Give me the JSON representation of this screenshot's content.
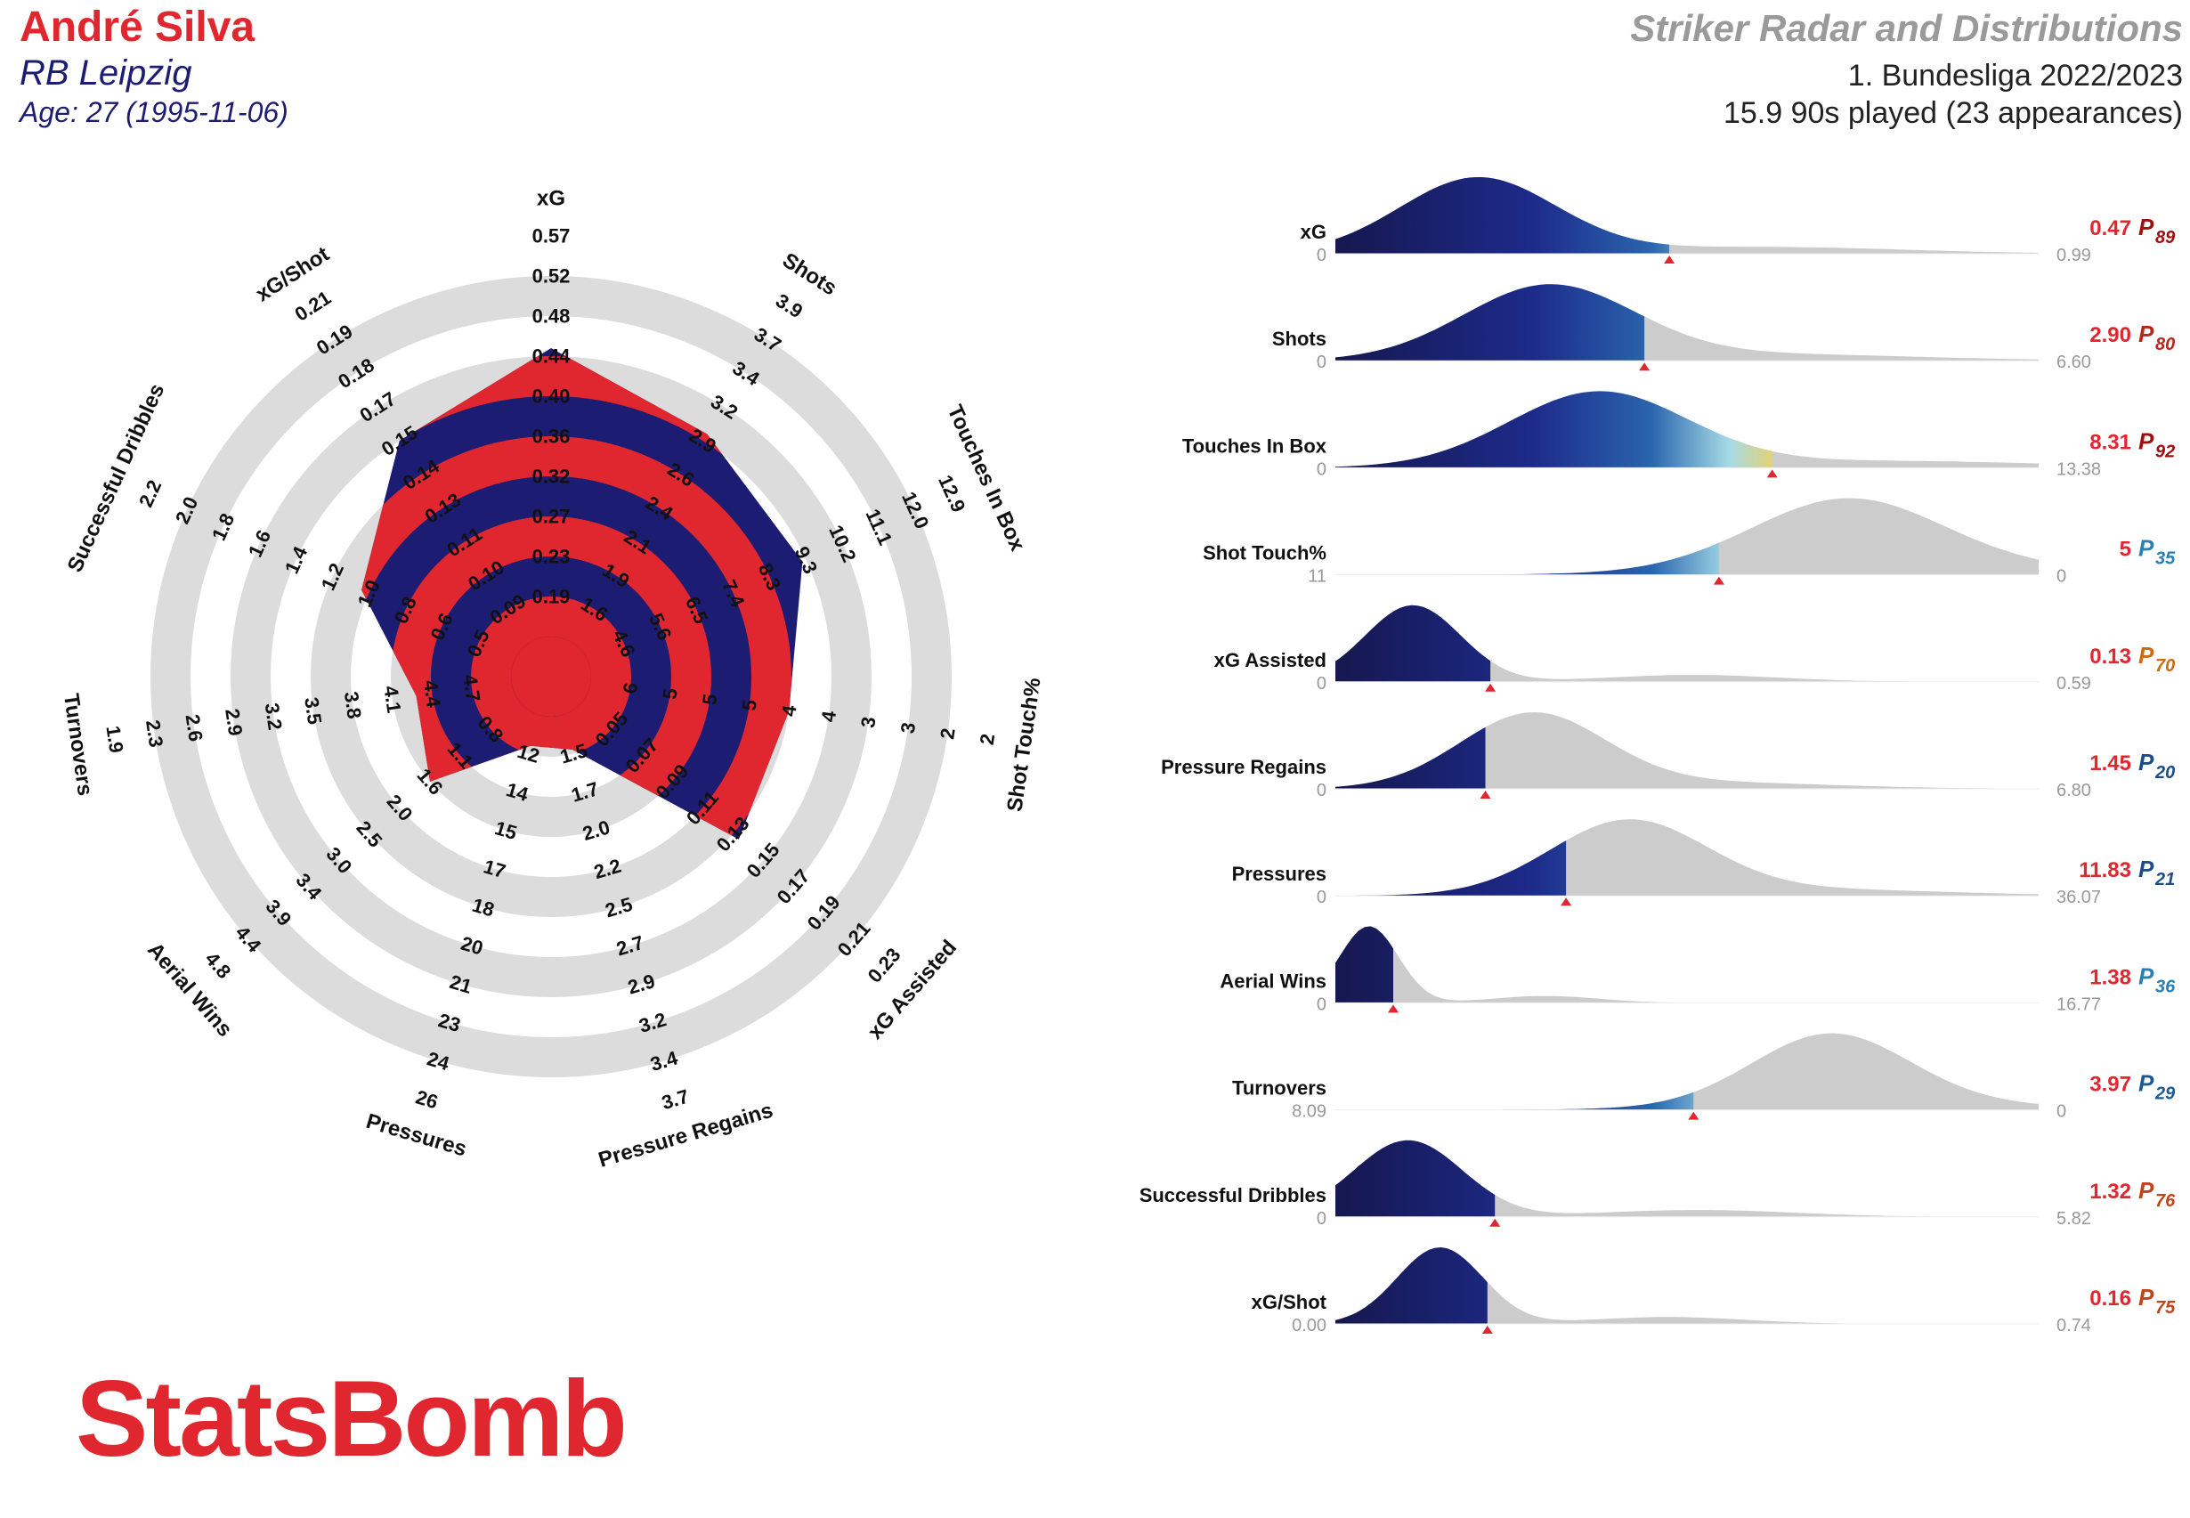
{
  "header": {
    "player": "André Silva",
    "team": "RB Leipzig",
    "age": "Age: 27 (1995-11-06)",
    "chart_title": "Striker Radar and Distributions",
    "competition": "1. Bundesliga 2022/2023",
    "minutes": "15.9 90s played (23 appearances)"
  },
  "logo": {
    "text": "StatsBomb"
  },
  "colors": {
    "player_red": "#e0262f",
    "team_navy": "#1c1d72",
    "title_grey": "#9a9a9a",
    "ring_grey": "#dcdcdc",
    "dist_grey": "#cccccc"
  },
  "chart_data": [
    {
      "type": "radar",
      "axes": [
        {
          "label": "xG",
          "ticks": [
            "0.19",
            "0.23",
            "0.27",
            "0.32",
            "0.36",
            "0.40",
            "0.44",
            "0.48",
            "0.52",
            "0.57"
          ],
          "value_fraction": 0.72
        },
        {
          "label": "Shots",
          "ticks": [
            "1.6",
            "1.9",
            "2.1",
            "2.4",
            "2.6",
            "2.9",
            "3.2",
            "3.4",
            "3.7",
            "3.9"
          ],
          "value_fraction": 0.62
        },
        {
          "label": "Touches In Box",
          "ticks": [
            "4.6",
            "5.6",
            "6.5",
            "7.4",
            "8.3",
            "9.3",
            "10.2",
            "11.1",
            "12.0",
            "12.9"
          ],
          "value_fraction": 0.59
        },
        {
          "label": "Shot Touch%",
          "ticks": [
            "6",
            "5",
            "5",
            "5",
            "4",
            "4",
            "3",
            "3",
            "2",
            "2"
          ],
          "value_fraction": 0.5
        },
        {
          "label": "xG Assisted",
          "ticks": [
            "0.05",
            "0.07",
            "0.09",
            "0.11",
            "0.13",
            "0.15",
            "0.17",
            "0.19",
            "0.21",
            "0.23"
          ],
          "value_fraction": 0.52
        },
        {
          "label": "Pressure Regains",
          "ticks": [
            "1.5",
            "1.7",
            "2.0",
            "2.2",
            "2.5",
            "2.7",
            "2.9",
            "3.2",
            "3.4",
            "3.7"
          ],
          "value_fraction": 0.09
        },
        {
          "label": "Pressures",
          "ticks": [
            "12",
            "14",
            "15",
            "17",
            "18",
            "20",
            "21",
            "23",
            "24",
            "26"
          ],
          "value_fraction": 0.08
        },
        {
          "label": "Aerial Wins",
          "ticks": [
            "0.8",
            "1.1",
            "1.6",
            "2.0",
            "2.5",
            "3.0",
            "3.4",
            "3.9",
            "4.4",
            "4.8"
          ],
          "value_fraction": 0.3
        },
        {
          "label": "Turnovers",
          "ticks": [
            "4.7",
            "4.4",
            "4.1",
            "3.8",
            "3.5",
            "3.2",
            "2.9",
            "2.6",
            "2.3",
            "1.9"
          ],
          "value_fraction": 0.24
        },
        {
          "label": "Successful Dribbles",
          "ticks": [
            "0.5",
            "0.6",
            "0.8",
            "1.0",
            "1.2",
            "1.4",
            "1.6",
            "1.8",
            "2.0",
            "2.2"
          ],
          "value_fraction": 0.42
        },
        {
          "label": "xG/Shot",
          "ticks": [
            "0.09",
            "0.10",
            "0.11",
            "0.13",
            "0.14",
            "0.15",
            "0.17",
            "0.18",
            "0.19",
            "0.21"
          ],
          "value_fraction": 0.6
        }
      ]
    },
    {
      "type": "area",
      "series_type": "distribution",
      "rows": [
        {
          "label": "xG",
          "min": "0",
          "max": "0.99",
          "value": "0.47",
          "percentile": "89",
          "marker": 0.47,
          "x_min": 0,
          "x_max": 0.99,
          "pct_color": "#a01010",
          "peak": 0.2,
          "spread": 0.11,
          "tail": 0.6
        },
        {
          "label": "Shots",
          "min": "0",
          "max": "6.60",
          "value": "2.90",
          "percentile": "80",
          "marker": 2.9,
          "x_min": 0,
          "x_max": 6.6,
          "pct_color": "#b8281a",
          "peak": 2.0,
          "spread": 0.8,
          "tail": 4.0
        },
        {
          "label": "Touches In Box",
          "min": "0",
          "max": "13.38",
          "value": "8.31",
          "percentile": "92",
          "marker": 8.31,
          "x_min": 0,
          "x_max": 13.38,
          "pct_color": "#a01010",
          "peak": 5.0,
          "spread": 1.7,
          "tail": 10.5
        },
        {
          "label": "Shot Touch%",
          "min": "11",
          "max": "0",
          "value": "5",
          "percentile": "35",
          "marker": 5,
          "x_min": 11,
          "x_max": 0,
          "pct_color": "#2a7fb3",
          "peak": 3.0,
          "spread": 1.5,
          "tail": 1.5
        },
        {
          "label": "xG Assisted",
          "min": "0",
          "max": "0.59",
          "value": "0.13",
          "percentile": "70",
          "marker": 0.13,
          "x_min": 0,
          "x_max": 0.59,
          "pct_color": "#d06a10",
          "peak": 0.065,
          "spread": 0.04,
          "tail": 0.3
        },
        {
          "label": "Pressure Regains",
          "min": "0",
          "max": "6.80",
          "value": "1.45",
          "percentile": "20",
          "marker": 1.45,
          "x_min": 0,
          "x_max": 6.8,
          "pct_color": "#1c4c8a",
          "peak": 1.9,
          "spread": 0.7,
          "tail": 3.5
        },
        {
          "label": "Pressures",
          "min": "0",
          "max": "36.07",
          "value": "11.83",
          "percentile": "21",
          "marker": 11.83,
          "x_min": 0,
          "x_max": 36.07,
          "pct_color": "#1c4c8a",
          "peak": 15.0,
          "spread": 4.0,
          "tail": 24.0
        },
        {
          "label": "Aerial Wins",
          "min": "0",
          "max": "16.77",
          "value": "1.38",
          "percentile": "36",
          "marker": 1.38,
          "x_min": 0,
          "x_max": 16.77,
          "pct_color": "#2a7fb3",
          "peak": 0.8,
          "spread": 0.7,
          "tail": 5.0
        },
        {
          "label": "Turnovers",
          "min": "8.09",
          "max": "0",
          "value": "3.97",
          "percentile": "29",
          "marker": 3.97,
          "x_min": 8.09,
          "x_max": 0,
          "pct_color": "#1c5a90",
          "peak": 2.4,
          "spread": 0.9,
          "tail": 1.6
        },
        {
          "label": "Successful Dribbles",
          "min": "0",
          "max": "5.82",
          "value": "1.32",
          "percentile": "76",
          "marker": 1.32,
          "x_min": 0,
          "x_max": 5.82,
          "pct_color": "#c04418",
          "peak": 0.6,
          "spread": 0.45,
          "tail": 3.0
        },
        {
          "label": "xG/Shot",
          "min": "0.00",
          "max": "0.74",
          "value": "0.16",
          "percentile": "75",
          "marker": 0.16,
          "x_min": 0,
          "x_max": 0.74,
          "pct_color": "#c04418",
          "peak": 0.11,
          "spread": 0.045,
          "tail": 0.35
        }
      ]
    }
  ]
}
